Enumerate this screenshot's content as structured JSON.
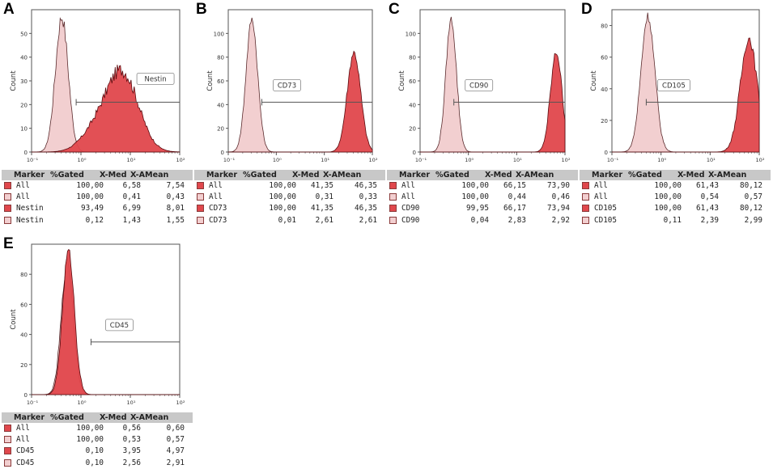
{
  "colors": {
    "stained_fill": "#e0474c",
    "stained_stroke": "#5a0a0e",
    "control_fill": "#f2cfd0",
    "control_stroke": "#5b2b2d",
    "table_header": "#c8c8c8"
  },
  "table_header": {
    "marker": "Marker",
    "gated": "%Gated",
    "xmed": "X-Med",
    "xamean": "X-AMean"
  },
  "y_axis_label": "Count",
  "x_ticks": [
    "10⁻¹",
    "10⁰",
    "10¹",
    "10²"
  ],
  "panels": [
    {
      "id": "A",
      "gate_label": "Nestin",
      "y_ticks": [
        "0",
        "10",
        "20",
        "30",
        "40",
        "50"
      ],
      "rows": [
        {
          "type": "stained",
          "marker": "All",
          "gated": "100,00",
          "xmed": "6,58",
          "xamean": "7,54"
        },
        {
          "type": "control",
          "marker": "All",
          "gated": "100,00",
          "xmed": "0,41",
          "xamean": "0,43"
        },
        {
          "type": "stained",
          "marker": "Nestin",
          "gated": "93,49",
          "xmed": "6,99",
          "xamean": "8,01"
        },
        {
          "type": "control",
          "marker": "Nestin",
          "gated": "0,12",
          "xmed": "1,43",
          "xamean": "1,55"
        }
      ]
    },
    {
      "id": "B",
      "gate_label": "CD73",
      "y_ticks": [
        "0",
        "20",
        "40",
        "60",
        "80",
        "100"
      ],
      "rows": [
        {
          "type": "stained",
          "marker": "All",
          "gated": "100,00",
          "xmed": "41,35",
          "xamean": "46,35"
        },
        {
          "type": "control",
          "marker": "All",
          "gated": "100,00",
          "xmed": "0,31",
          "xamean": "0,33"
        },
        {
          "type": "stained",
          "marker": "CD73",
          "gated": "100,00",
          "xmed": "41,35",
          "xamean": "46,35"
        },
        {
          "type": "control",
          "marker": "CD73",
          "gated": "0,01",
          "xmed": "2,61",
          "xamean": "2,61"
        }
      ]
    },
    {
      "id": "C",
      "gate_label": "CD90",
      "y_ticks": [
        "0",
        "20",
        "40",
        "60",
        "80",
        "100"
      ],
      "rows": [
        {
          "type": "stained",
          "marker": "All",
          "gated": "100,00",
          "xmed": "66,15",
          "xamean": "73,90"
        },
        {
          "type": "control",
          "marker": "All",
          "gated": "100,00",
          "xmed": "0,44",
          "xamean": "0,46"
        },
        {
          "type": "stained",
          "marker": "CD90",
          "gated": "99,95",
          "xmed": "66,17",
          "xamean": "73,94"
        },
        {
          "type": "control",
          "marker": "CD90",
          "gated": "0,04",
          "xmed": "2,83",
          "xamean": "2,92"
        }
      ]
    },
    {
      "id": "D",
      "gate_label": "CD105",
      "y_ticks": [
        "0",
        "20",
        "40",
        "60",
        "80"
      ],
      "rows": [
        {
          "type": "stained",
          "marker": "All",
          "gated": "100,00",
          "xmed": "61,43",
          "xamean": "80,12"
        },
        {
          "type": "control",
          "marker": "All",
          "gated": "100,00",
          "xmed": "0,54",
          "xamean": "0,57"
        },
        {
          "type": "stained",
          "marker": "CD105",
          "gated": "100,00",
          "xmed": "61,43",
          "xamean": "80,12"
        },
        {
          "type": "control",
          "marker": "CD105",
          "gated": "0,11",
          "xmed": "2,39",
          "xamean": "2,99"
        }
      ]
    },
    {
      "id": "E",
      "gate_label": "CD45",
      "y_ticks": [
        "0",
        "20",
        "40",
        "60",
        "80"
      ],
      "rows": [
        {
          "type": "stained",
          "marker": "All",
          "gated": "100,00",
          "xmed": "0,56",
          "xamean": "0,60"
        },
        {
          "type": "control",
          "marker": "All",
          "gated": "100,00",
          "xmed": "0,53",
          "xamean": "0,57"
        },
        {
          "type": "stained",
          "marker": "CD45",
          "gated": "0,10",
          "xmed": "3,95",
          "xamean": "4,97"
        },
        {
          "type": "control",
          "marker": "CD45",
          "gated": "0,10",
          "xmed": "2,56",
          "xamean": "2,91"
        }
      ]
    }
  ],
  "chart_data": [
    {
      "type": "histogram",
      "title": "A",
      "xlabel": "",
      "ylabel": "Count",
      "x_scale": "log",
      "xlim": [
        0.1,
        100
      ],
      "ylim": [
        0,
        60
      ],
      "gate": {
        "label": "Nestin",
        "from": 0.8,
        "to": 100
      },
      "series": [
        {
          "name": "control",
          "peak_center": 0.41,
          "peak_height": 57,
          "width": 0.13
        },
        {
          "name": "Nestin",
          "peak_center": 6.99,
          "peak_height": 33,
          "width": 0.32,
          "shoulder": 0.25
        }
      ]
    },
    {
      "type": "histogram",
      "title": "B",
      "xlabel": "",
      "ylabel": "Count",
      "x_scale": "log",
      "xlim": [
        0.1,
        100
      ],
      "ylim": [
        0,
        120
      ],
      "gate": {
        "label": "CD73",
        "from": 0.5,
        "to": 100
      },
      "series": [
        {
          "name": "control",
          "peak_center": 0.31,
          "peak_height": 112,
          "width": 0.12
        },
        {
          "name": "CD73",
          "peak_center": 41.35,
          "peak_height": 84,
          "width": 0.14
        }
      ]
    },
    {
      "type": "histogram",
      "title": "C",
      "xlabel": "",
      "ylabel": "Count",
      "x_scale": "log",
      "xlim": [
        0.1,
        100
      ],
      "ylim": [
        0,
        120
      ],
      "gate": {
        "label": "CD90",
        "from": 0.5,
        "to": 100
      },
      "series": [
        {
          "name": "control",
          "peak_center": 0.44,
          "peak_height": 112,
          "width": 0.11
        },
        {
          "name": "CD90",
          "peak_center": 66.17,
          "peak_height": 84,
          "width": 0.12
        }
      ]
    },
    {
      "type": "histogram",
      "title": "D",
      "xlabel": "",
      "ylabel": "Count",
      "x_scale": "log",
      "xlim": [
        0.1,
        100
      ],
      "ylim": [
        0,
        90
      ],
      "gate": {
        "label": "CD105",
        "from": 0.5,
        "to": 100
      },
      "series": [
        {
          "name": "control",
          "peak_center": 0.54,
          "peak_height": 86,
          "width": 0.14
        },
        {
          "name": "CD105",
          "peak_center": 61.43,
          "peak_height": 72,
          "width": 0.17
        }
      ]
    },
    {
      "type": "histogram",
      "title": "E",
      "xlabel": "",
      "ylabel": "Count",
      "x_scale": "log",
      "xlim": [
        0.1,
        100
      ],
      "ylim": [
        0,
        100
      ],
      "gate": {
        "label": "CD45",
        "from": 1.6,
        "to": 100
      },
      "series": [
        {
          "name": "control",
          "peak_center": 0.53,
          "peak_height": 88,
          "width": 0.12
        },
        {
          "name": "CD45",
          "peak_center": 0.56,
          "peak_height": 95,
          "width": 0.12
        }
      ]
    }
  ]
}
